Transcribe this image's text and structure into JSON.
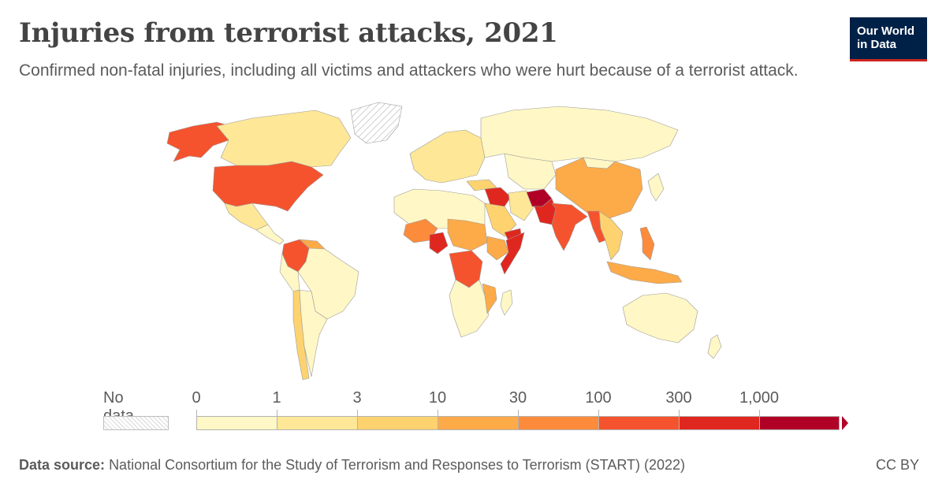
{
  "header": {
    "title": "Injuries from terrorist attacks, 2021",
    "subtitle": "Confirmed non-fatal injuries, including all victims and attackers who were hurt because of a terrorist attack.",
    "logo_line1": "Our World",
    "logo_line2": "in Data"
  },
  "colors": {
    "bin_0": "#fff7c5",
    "bin_1": "#fee796",
    "bin_2": "#fed36f",
    "bin_3": "#fdaa48",
    "bin_4": "#fc8b3c",
    "bin_5": "#f5532e",
    "bin_6": "#e0271f",
    "bin_7": "#b10026",
    "no_data": "#e6e6e6",
    "border": "#9b9b9b"
  },
  "legend": {
    "no_data_label": "No data",
    "thresholds": [
      "0",
      "1",
      "3",
      "10",
      "30",
      "100",
      "300",
      "1,000"
    ],
    "bins": [
      "bin_0",
      "bin_1",
      "bin_2",
      "bin_3",
      "bin_4",
      "bin_5",
      "bin_6",
      "bin_7"
    ]
  },
  "map_regions": [
    {
      "name": "Alaska (United States)",
      "bin": "bin_5"
    },
    {
      "name": "Canada",
      "bin": "bin_1"
    },
    {
      "name": "Greenland",
      "bin": "no_data"
    },
    {
      "name": "United States",
      "bin": "bin_5"
    },
    {
      "name": "Mexico",
      "bin": "bin_1"
    },
    {
      "name": "Central America",
      "bin": "bin_0"
    },
    {
      "name": "Colombia",
      "bin": "bin_5"
    },
    {
      "name": "Venezuela",
      "bin": "bin_3"
    },
    {
      "name": "Brazil",
      "bin": "bin_0"
    },
    {
      "name": "Peru",
      "bin": "bin_0"
    },
    {
      "name": "Chile",
      "bin": "bin_2"
    },
    {
      "name": "Argentina",
      "bin": "bin_0"
    },
    {
      "name": "Europe",
      "bin": "bin_1"
    },
    {
      "name": "Russia",
      "bin": "bin_0"
    },
    {
      "name": "Kazakhstan & Central Asia",
      "bin": "bin_0"
    },
    {
      "name": "China",
      "bin": "bin_3"
    },
    {
      "name": "Mongolia",
      "bin": "bin_0"
    },
    {
      "name": "Turkey",
      "bin": "bin_2"
    },
    {
      "name": "Syria & Iraq",
      "bin": "bin_6"
    },
    {
      "name": "Iran",
      "bin": "bin_1"
    },
    {
      "name": "Saudi Arabia",
      "bin": "bin_2"
    },
    {
      "name": "Yemen",
      "bin": "bin_6"
    },
    {
      "name": "Afghanistan",
      "bin": "bin_7"
    },
    {
      "name": "Pakistan",
      "bin": "bin_6"
    },
    {
      "name": "India",
      "bin": "bin_5"
    },
    {
      "name": "Myanmar",
      "bin": "bin_5"
    },
    {
      "name": "Southeast Asia",
      "bin": "bin_2"
    },
    {
      "name": "Philippines",
      "bin": "bin_4"
    },
    {
      "name": "Indonesia",
      "bin": "bin_3"
    },
    {
      "name": "Japan",
      "bin": "bin_0"
    },
    {
      "name": "North Africa",
      "bin": "bin_0"
    },
    {
      "name": "Mali",
      "bin": "bin_4"
    },
    {
      "name": "Nigeria",
      "bin": "bin_6"
    },
    {
      "name": "Sudan & Chad",
      "bin": "bin_3"
    },
    {
      "name": "Somalia",
      "bin": "bin_6"
    },
    {
      "name": "Ethiopia",
      "bin": "bin_3"
    },
    {
      "name": "DR Congo",
      "bin": "bin_5"
    },
    {
      "name": "Southern Africa",
      "bin": "bin_0"
    },
    {
      "name": "Mozambique",
      "bin": "bin_3"
    },
    {
      "name": "Madagascar",
      "bin": "bin_0"
    },
    {
      "name": "Australia",
      "bin": "bin_0"
    },
    {
      "name": "New Zealand",
      "bin": "bin_0"
    }
  ],
  "footer": {
    "source_label": "Data source:",
    "source_text": "National Consortium for the Study of Terrorism and Responses to Terrorism (START) (2022)",
    "license": "CC BY"
  }
}
